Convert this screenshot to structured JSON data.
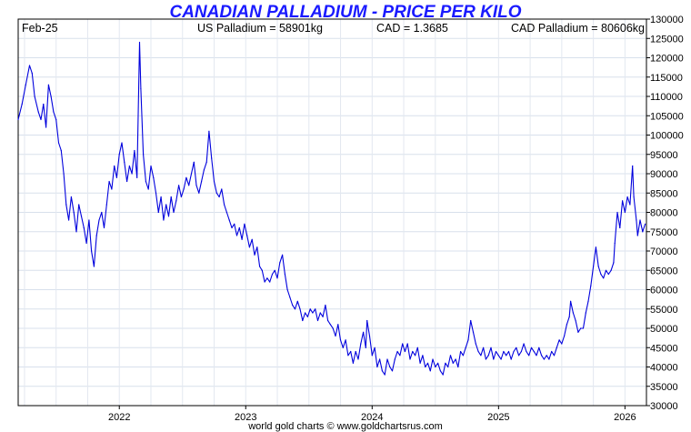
{
  "chart_data": {
    "type": "line",
    "title": "CANADIAN PALLADIUM - PRICE PER KILO",
    "info_left": "Feb-25",
    "info_usd": "US Palladium = 58901kg",
    "info_fx": "CAD = 1.3685",
    "info_cad": "CAD Palladium = 80606kg",
    "footer": "world gold charts © www.goldchartsrus.com",
    "ylim": [
      30000,
      130000
    ],
    "yticks": [
      "30000",
      "35000",
      "40000",
      "45000",
      "50000",
      "55000",
      "60000",
      "65000",
      "70000",
      "75000",
      "80000",
      "85000",
      "90000",
      "95000",
      "100000",
      "105000",
      "110000",
      "115000",
      "120000",
      "125000",
      "130000"
    ],
    "xlim": [
      2021.2,
      2026.17
    ],
    "xticks": [
      {
        "label": "2022",
        "value": 2022
      },
      {
        "label": "2023",
        "value": 2023
      },
      {
        "label": "2024",
        "value": 2024
      },
      {
        "label": "2025",
        "value": 2025
      },
      {
        "label": "2026",
        "value": 2026
      }
    ],
    "grid": true,
    "line_color": "#0000dd",
    "series": [
      {
        "points": [
          [
            2021.2,
            104000
          ],
          [
            2021.23,
            108000
          ],
          [
            2021.26,
            113000
          ],
          [
            2021.29,
            118000
          ],
          [
            2021.31,
            116000
          ],
          [
            2021.33,
            110000
          ],
          [
            2021.36,
            106000
          ],
          [
            2021.38,
            104000
          ],
          [
            2021.4,
            108000
          ],
          [
            2021.42,
            102000
          ],
          [
            2021.44,
            113000
          ],
          [
            2021.46,
            110000
          ],
          [
            2021.48,
            106000
          ],
          [
            2021.5,
            104000
          ],
          [
            2021.52,
            98000
          ],
          [
            2021.54,
            96000
          ],
          [
            2021.56,
            90000
          ],
          [
            2021.58,
            82000
          ],
          [
            2021.6,
            78000
          ],
          [
            2021.62,
            84000
          ],
          [
            2021.64,
            80000
          ],
          [
            2021.66,
            75000
          ],
          [
            2021.68,
            82000
          ],
          [
            2021.7,
            79000
          ],
          [
            2021.72,
            76000
          ],
          [
            2021.74,
            72000
          ],
          [
            2021.76,
            78000
          ],
          [
            2021.78,
            70000
          ],
          [
            2021.8,
            66000
          ],
          [
            2021.82,
            74000
          ],
          [
            2021.84,
            78000
          ],
          [
            2021.86,
            80000
          ],
          [
            2021.88,
            76000
          ],
          [
            2021.9,
            82000
          ],
          [
            2021.92,
            88000
          ],
          [
            2021.94,
            86000
          ],
          [
            2021.96,
            92000
          ],
          [
            2021.98,
            89000
          ],
          [
            2022.0,
            95000
          ],
          [
            2022.02,
            98000
          ],
          [
            2022.04,
            93000
          ],
          [
            2022.06,
            88000
          ],
          [
            2022.08,
            92000
          ],
          [
            2022.1,
            90000
          ],
          [
            2022.12,
            96000
          ],
          [
            2022.14,
            89000
          ],
          [
            2022.16,
            124000
          ],
          [
            2022.17,
            112000
          ],
          [
            2022.19,
            95000
          ],
          [
            2022.21,
            88000
          ],
          [
            2022.23,
            86000
          ],
          [
            2022.25,
            92000
          ],
          [
            2022.27,
            89000
          ],
          [
            2022.29,
            85000
          ],
          [
            2022.31,
            80000
          ],
          [
            2022.33,
            84000
          ],
          [
            2022.35,
            78000
          ],
          [
            2022.37,
            82000
          ],
          [
            2022.39,
            79000
          ],
          [
            2022.41,
            84000
          ],
          [
            2022.43,
            80000
          ],
          [
            2022.45,
            83000
          ],
          [
            2022.47,
            87000
          ],
          [
            2022.49,
            84000
          ],
          [
            2022.51,
            86000
          ],
          [
            2022.53,
            89000
          ],
          [
            2022.55,
            87000
          ],
          [
            2022.57,
            90000
          ],
          [
            2022.59,
            93000
          ],
          [
            2022.61,
            87000
          ],
          [
            2022.63,
            85000
          ],
          [
            2022.65,
            88000
          ],
          [
            2022.67,
            91000
          ],
          [
            2022.69,
            93000
          ],
          [
            2022.71,
            101000
          ],
          [
            2022.73,
            94000
          ],
          [
            2022.75,
            88000
          ],
          [
            2022.77,
            85000
          ],
          [
            2022.79,
            84000
          ],
          [
            2022.81,
            86000
          ],
          [
            2022.83,
            82000
          ],
          [
            2022.85,
            80000
          ],
          [
            2022.87,
            78000
          ],
          [
            2022.89,
            76000
          ],
          [
            2022.91,
            77000
          ],
          [
            2022.93,
            74000
          ],
          [
            2022.95,
            76000
          ],
          [
            2022.97,
            73000
          ],
          [
            2022.99,
            77000
          ],
          [
            2023.01,
            74000
          ],
          [
            2023.03,
            71000
          ],
          [
            2023.05,
            73000
          ],
          [
            2023.07,
            69000
          ],
          [
            2023.09,
            71000
          ],
          [
            2023.11,
            66000
          ],
          [
            2023.13,
            65000
          ],
          [
            2023.15,
            62000
          ],
          [
            2023.17,
            63000
          ],
          [
            2023.19,
            62000
          ],
          [
            2023.21,
            64000
          ],
          [
            2023.23,
            65000
          ],
          [
            2023.25,
            63000
          ],
          [
            2023.27,
            67000
          ],
          [
            2023.29,
            69000
          ],
          [
            2023.31,
            64000
          ],
          [
            2023.33,
            60000
          ],
          [
            2023.35,
            58000
          ],
          [
            2023.37,
            56000
          ],
          [
            2023.39,
            55000
          ],
          [
            2023.41,
            57000
          ],
          [
            2023.43,
            55000
          ],
          [
            2023.45,
            52000
          ],
          [
            2023.47,
            54000
          ],
          [
            2023.49,
            53000
          ],
          [
            2023.51,
            55000
          ],
          [
            2023.53,
            54000
          ],
          [
            2023.55,
            55000
          ],
          [
            2023.57,
            52000
          ],
          [
            2023.59,
            54000
          ],
          [
            2023.61,
            53000
          ],
          [
            2023.63,
            56000
          ],
          [
            2023.65,
            52000
          ],
          [
            2023.67,
            51000
          ],
          [
            2023.69,
            50000
          ],
          [
            2023.71,
            48000
          ],
          [
            2023.73,
            51000
          ],
          [
            2023.75,
            47000
          ],
          [
            2023.77,
            45000
          ],
          [
            2023.79,
            47000
          ],
          [
            2023.81,
            43000
          ],
          [
            2023.83,
            44000
          ],
          [
            2023.85,
            41000
          ],
          [
            2023.87,
            44000
          ],
          [
            2023.89,
            42000
          ],
          [
            2023.91,
            46000
          ],
          [
            2023.93,
            49000
          ],
          [
            2023.95,
            45000
          ],
          [
            2023.96,
            52000
          ],
          [
            2023.98,
            48000
          ],
          [
            2024.0,
            43000
          ],
          [
            2024.02,
            45000
          ],
          [
            2024.04,
            40000
          ],
          [
            2024.06,
            42000
          ],
          [
            2024.08,
            39000
          ],
          [
            2024.1,
            38000
          ],
          [
            2024.12,
            42000
          ],
          [
            2024.14,
            40000
          ],
          [
            2024.16,
            39000
          ],
          [
            2024.18,
            42000
          ],
          [
            2024.2,
            44000
          ],
          [
            2024.22,
            43000
          ],
          [
            2024.24,
            46000
          ],
          [
            2024.26,
            44000
          ],
          [
            2024.28,
            46000
          ],
          [
            2024.3,
            42000
          ],
          [
            2024.32,
            44000
          ],
          [
            2024.34,
            43000
          ],
          [
            2024.36,
            45000
          ],
          [
            2024.38,
            41000
          ],
          [
            2024.4,
            43000
          ],
          [
            2024.42,
            40000
          ],
          [
            2024.44,
            41000
          ],
          [
            2024.46,
            39000
          ],
          [
            2024.48,
            42000
          ],
          [
            2024.5,
            40000
          ],
          [
            2024.52,
            41000
          ],
          [
            2024.54,
            39000
          ],
          [
            2024.56,
            38000
          ],
          [
            2024.58,
            41000
          ],
          [
            2024.6,
            40000
          ],
          [
            2024.62,
            43000
          ],
          [
            2024.64,
            41000
          ],
          [
            2024.66,
            42000
          ],
          [
            2024.68,
            40000
          ],
          [
            2024.7,
            44000
          ],
          [
            2024.72,
            43000
          ],
          [
            2024.74,
            45000
          ],
          [
            2024.76,
            47000
          ],
          [
            2024.78,
            52000
          ],
          [
            2024.8,
            49000
          ],
          [
            2024.82,
            46000
          ],
          [
            2024.84,
            44000
          ],
          [
            2024.86,
            43000
          ],
          [
            2024.88,
            45000
          ],
          [
            2024.9,
            42000
          ],
          [
            2024.92,
            43000
          ],
          [
            2024.94,
            45000
          ],
          [
            2024.96,
            42000
          ],
          [
            2024.98,
            44000
          ],
          [
            2025.0,
            43000
          ],
          [
            2025.02,
            42000
          ],
          [
            2025.04,
            44000
          ],
          [
            2025.06,
            43000
          ],
          [
            2025.08,
            44000
          ],
          [
            2025.1,
            42000
          ],
          [
            2025.12,
            44000
          ],
          [
            2025.14,
            45000
          ],
          [
            2025.16,
            43000
          ],
          [
            2025.18,
            44000
          ],
          [
            2025.2,
            46000
          ],
          [
            2025.22,
            44000
          ],
          [
            2025.24,
            43000
          ],
          [
            2025.26,
            45000
          ],
          [
            2025.28,
            44000
          ],
          [
            2025.3,
            43000
          ],
          [
            2025.32,
            45000
          ],
          [
            2025.34,
            43000
          ],
          [
            2025.36,
            42000
          ],
          [
            2025.38,
            43000
          ],
          [
            2025.4,
            42000
          ],
          [
            2025.42,
            44000
          ],
          [
            2025.44,
            43000
          ],
          [
            2025.46,
            45000
          ],
          [
            2025.48,
            47000
          ],
          [
            2025.5,
            46000
          ],
          [
            2025.52,
            48000
          ],
          [
            2025.54,
            51000
          ],
          [
            2025.56,
            53000
          ],
          [
            2025.57,
            57000
          ],
          [
            2025.59,
            54000
          ],
          [
            2025.61,
            52000
          ],
          [
            2025.63,
            49000
          ],
          [
            2025.65,
            50000
          ],
          [
            2025.67,
            50000
          ],
          [
            2025.69,
            54000
          ],
          [
            2025.71,
            57000
          ],
          [
            2025.73,
            61000
          ],
          [
            2025.75,
            66000
          ],
          [
            2025.77,
            71000
          ],
          [
            2025.79,
            66000
          ],
          [
            2025.81,
            64000
          ],
          [
            2025.83,
            63000
          ],
          [
            2025.85,
            65000
          ],
          [
            2025.87,
            64000
          ],
          [
            2025.89,
            65000
          ],
          [
            2025.91,
            67000
          ],
          [
            2025.92,
            72000
          ],
          [
            2025.94,
            80000
          ],
          [
            2025.96,
            76000
          ],
          [
            2025.98,
            83000
          ],
          [
            2026.0,
            80000
          ],
          [
            2026.02,
            84000
          ],
          [
            2026.04,
            82000
          ],
          [
            2026.06,
            92000
          ],
          [
            2026.07,
            84000
          ],
          [
            2026.09,
            78000
          ],
          [
            2026.1,
            74000
          ],
          [
            2026.12,
            78000
          ],
          [
            2026.14,
            75000
          ],
          [
            2026.16,
            77000
          ]
        ]
      }
    ]
  }
}
